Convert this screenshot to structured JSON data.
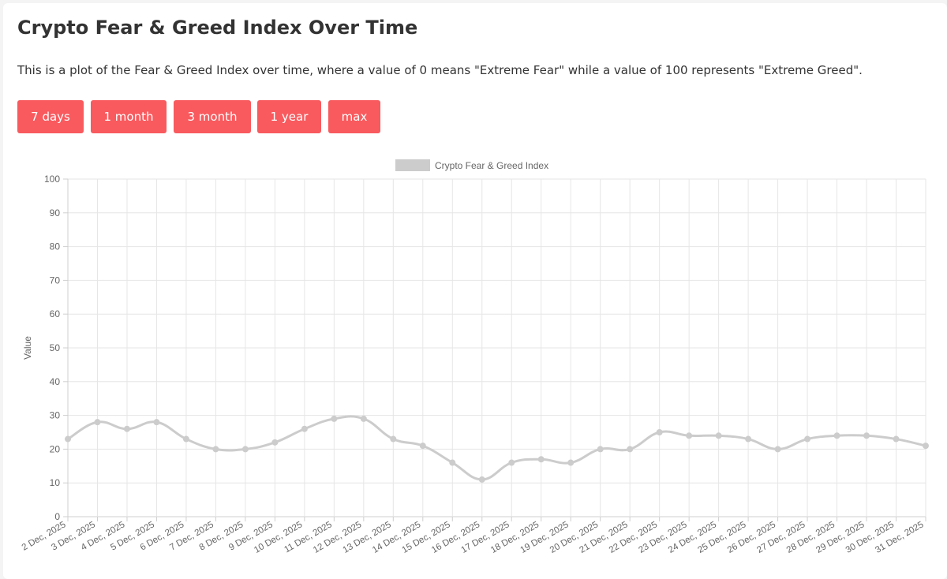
{
  "header": {
    "title": "Crypto Fear & Greed Index Over Time",
    "description": "This is a plot of the Fear & Greed Index over time, where a value of 0 means \"Extreme Fear\" while a value of 100 represents \"Extreme Greed\"."
  },
  "range_buttons": [
    "7 days",
    "1 month",
    "3 month",
    "1 year",
    "max"
  ],
  "colors": {
    "button": "#f85a5e",
    "series": "#cccccc",
    "grid": "#e6e6e6"
  },
  "chart_data": {
    "type": "line",
    "title": "",
    "xlabel": "",
    "ylabel": "Value",
    "ylim": [
      0,
      100
    ],
    "yticks": [
      0,
      10,
      20,
      30,
      40,
      50,
      60,
      70,
      80,
      90,
      100
    ],
    "grid": true,
    "legend_position": "top",
    "categories": [
      "2 Dec, 2025",
      "3 Dec, 2025",
      "4 Dec, 2025",
      "5 Dec, 2025",
      "6 Dec, 2025",
      "7 Dec, 2025",
      "8 Dec, 2025",
      "9 Dec, 2025",
      "10 Dec, 2025",
      "11 Dec, 2025",
      "12 Dec, 2025",
      "13 Dec, 2025",
      "14 Dec, 2025",
      "15 Dec, 2025",
      "16 Dec, 2025",
      "17 Dec, 2025",
      "18 Dec, 2025",
      "19 Dec, 2025",
      "20 Dec, 2025",
      "21 Dec, 2025",
      "22 Dec, 2025",
      "23 Dec, 2025",
      "24 Dec, 2025",
      "25 Dec, 2025",
      "26 Dec, 2025",
      "27 Dec, 2025",
      "28 Dec, 2025",
      "29 Dec, 2025",
      "30 Dec, 2025",
      "31 Dec, 2025"
    ],
    "series": [
      {
        "name": "Crypto Fear & Greed Index",
        "values": [
          23,
          28,
          26,
          28,
          23,
          20,
          20,
          22,
          26,
          29,
          29,
          23,
          21,
          16,
          11,
          16,
          17,
          16,
          20,
          20,
          25,
          24,
          24,
          23,
          20,
          23,
          24,
          24,
          23,
          21
        ]
      }
    ]
  }
}
